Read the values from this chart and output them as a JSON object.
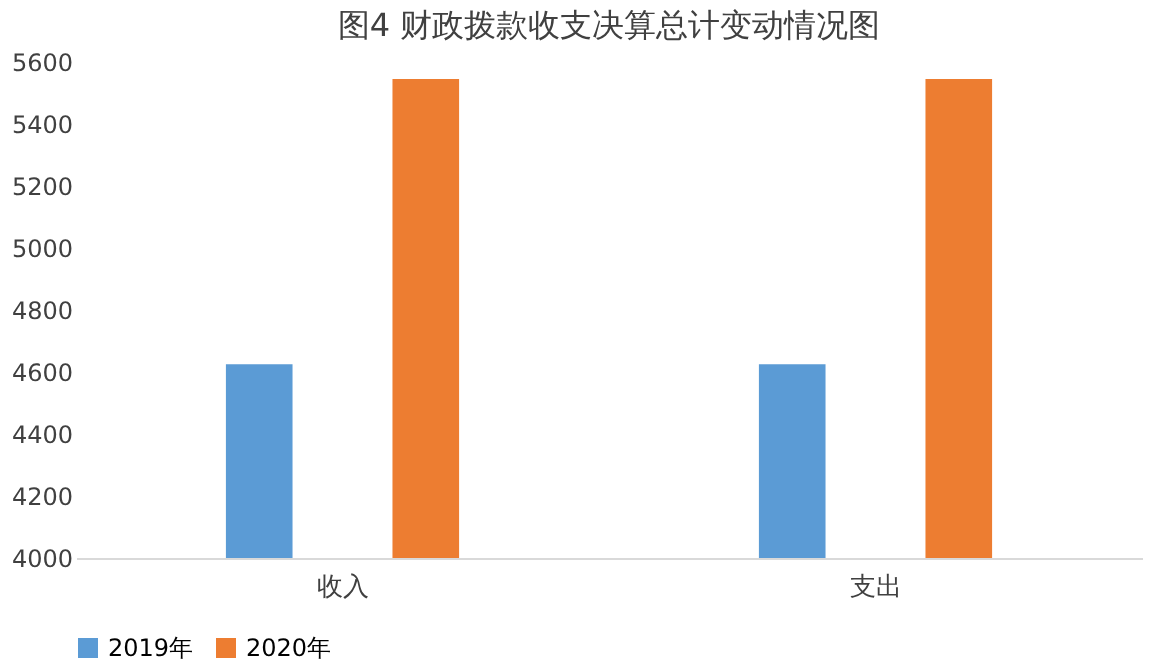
{
  "chart_data": {
    "type": "bar",
    "title": "图4    财政拨款收支决算总计变动情况图",
    "categories": [
      "收入",
      "支出"
    ],
    "series": [
      {
        "name": "2019年",
        "color": "#5b9bd5",
        "values": [
          4625,
          4625
        ]
      },
      {
        "name": "2020年",
        "color": "#ed7d31",
        "values": [
          5545,
          5545
        ]
      }
    ],
    "ylim": [
      4000,
      5600
    ],
    "yticks": [
      4000,
      4200,
      4400,
      4600,
      4800,
      5000,
      5200,
      5400,
      5600
    ],
    "grid": false,
    "legend": "bottom"
  }
}
